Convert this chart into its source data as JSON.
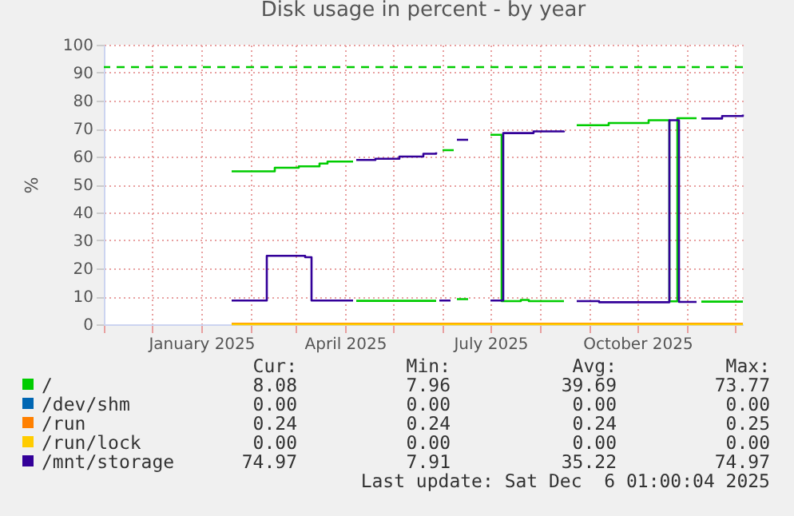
{
  "chart_data": {
    "type": "step",
    "title": "Disk usage in percent - by year",
    "ylabel": "%",
    "xlim": [
      "2024-11-01",
      "2025-12-06"
    ],
    "xticks": [
      {
        "value": "2024-11-01",
        "label": null
      },
      {
        "value": "2024-12-01",
        "label": null
      },
      {
        "value": "2025-01-01",
        "label": "January 2025"
      },
      {
        "value": "2025-02-01",
        "label": null
      },
      {
        "value": "2025-03-01",
        "label": null
      },
      {
        "value": "2025-04-01",
        "label": "April 2025"
      },
      {
        "value": "2025-05-01",
        "label": null
      },
      {
        "value": "2025-06-01",
        "label": null
      },
      {
        "value": "2025-07-01",
        "label": "July 2025"
      },
      {
        "value": "2025-08-01",
        "label": null
      },
      {
        "value": "2025-09-01",
        "label": null
      },
      {
        "value": "2025-10-01",
        "label": "October 2025"
      },
      {
        "value": "2025-11-01",
        "label": null
      },
      {
        "value": "2025-12-01",
        "label": null
      }
    ],
    "ylim": [
      0,
      100
    ],
    "yticks": [
      0,
      10,
      20,
      30,
      40,
      50,
      60,
      70,
      80,
      90,
      100
    ],
    "grid": true,
    "legend": "bottom",
    "line_style": "solid",
    "series": [
      {
        "name": "/",
        "color": "#00cc00",
        "x": [
          "2025-01-20",
          "2025-02-16",
          "2025-03-03",
          "2025-03-16",
          "2025-03-21",
          "2025-04-06",
          "2025-04-07",
          "2025-04-08",
          "2025-05-28",
          "2025-05-29",
          "2025-06-01",
          "2025-06-08",
          "2025-06-09",
          "2025-06-10",
          "2025-06-17",
          "2025-06-18",
          "2025-07-01",
          "2025-07-07",
          "2025-07-08",
          "2025-07-20",
          "2025-07-25",
          "2025-08-16",
          "2025-08-20",
          "2025-08-24",
          "2025-09-13",
          "2025-10-08",
          "2025-10-20",
          "2025-10-21",
          "2025-10-25",
          "2025-10-26",
          "2025-11-07",
          "2025-11-08",
          "2025-11-10",
          "2025-12-06"
        ],
        "values": [
          54.7,
          56.0,
          56.5,
          57.5,
          58.2,
          58.2,
          null,
          8.4,
          8.4,
          null,
          62.3,
          62.3,
          null,
          9.0,
          9.0,
          null,
          67.8,
          67.8,
          8.3,
          8.7,
          8.3,
          8.3,
          null,
          71.2,
          72.0,
          73.0,
          73.0,
          8.2,
          8.2,
          73.7,
          73.7,
          null,
          8.1,
          8.1
        ]
      },
      {
        "name": "/dev/shm",
        "color": "#0066b3"
      },
      {
        "name": "/run",
        "color": "#ff8000",
        "x": [
          "2025-01-20",
          "2025-12-06"
        ],
        "values": [
          0.2,
          0.2
        ]
      },
      {
        "name": "/run/lock",
        "color": "#ffcc00",
        "x": [
          "2025-01-20",
          "2025-12-06"
        ],
        "values": [
          0,
          0
        ]
      },
      {
        "name": "/mnt/storage",
        "color": "#330099",
        "x": [
          "2025-01-20",
          "2025-02-10",
          "2025-02-11",
          "2025-03-06",
          "2025-03-07",
          "2025-03-10",
          "2025-03-11",
          "2025-04-06",
          "2025-04-07",
          "2025-04-08",
          "2025-04-20",
          "2025-05-05",
          "2025-05-20",
          "2025-05-28",
          "2025-05-29",
          "2025-05-30",
          "2025-06-06",
          "2025-06-07",
          "2025-06-10",
          "2025-06-17",
          "2025-06-18",
          "2025-07-01",
          "2025-07-08",
          "2025-07-09",
          "2025-07-28",
          "2025-08-16",
          "2025-08-20",
          "2025-08-24",
          "2025-09-07",
          "2025-10-20",
          "2025-10-21",
          "2025-10-26",
          "2025-10-27",
          "2025-11-07",
          "2025-11-08",
          "2025-11-10",
          "2025-11-22",
          "2025-11-23",
          "2025-12-06"
        ],
        "values": [
          8.5,
          8.5,
          24.5,
          24.5,
          24.0,
          24.0,
          8.5,
          8.5,
          null,
          58.8,
          59.2,
          60.0,
          61.0,
          61.5,
          null,
          8.5,
          8.5,
          null,
          66.0,
          66.0,
          null,
          8.5,
          8.5,
          68.4,
          69.0,
          69.2,
          null,
          8.3,
          7.9,
          7.9,
          73.0,
          73.0,
          8.0,
          8.0,
          null,
          73.6,
          73.6,
          74.5,
          75.0
        ]
      }
    ],
    "ref_lines": [
      {
        "axis": "y",
        "value": 92,
        "color": "#00cc00",
        "line_style": "dashed"
      }
    ],
    "annotations": [
      "Cur:",
      "Min:",
      "Avg:",
      "Max:",
      "8.08",
      "7.96",
      "39.69",
      "73.77",
      "0.00",
      "0.00",
      "0.00",
      "0.00",
      "0.24",
      "0.24",
      "0.24",
      "0.25",
      "0.00",
      "0.00",
      "0.00",
      "0.00",
      "74.97",
      "7.91",
      "35.22",
      "74.97",
      "Last update: Sat Dec  6 01:00:04 2025"
    ]
  }
}
